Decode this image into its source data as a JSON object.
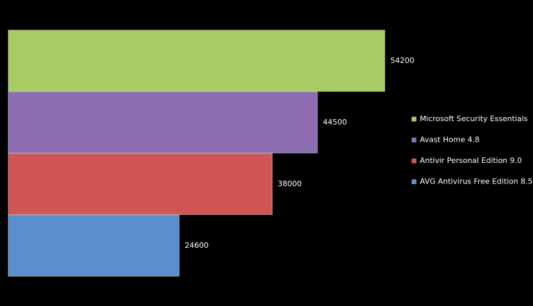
{
  "chart_data": {
    "type": "bar",
    "orientation": "horizontal",
    "legend": "right",
    "series": [
      {
        "name": "Microsoft Security Essentials",
        "color": "#a7cc64",
        "values": [
          54200
        ]
      },
      {
        "name": "Avast Home 4.8",
        "color": "#8c6db2",
        "values": [
          44500
        ]
      },
      {
        "name": "Antivir Personal Edition 9.0",
        "color": "#cf5654",
        "values": [
          38000
        ]
      },
      {
        "name": "AVG Antivirus Free Edition 8.5",
        "color": "#5b8ecf",
        "values": [
          24600
        ]
      }
    ]
  }
}
